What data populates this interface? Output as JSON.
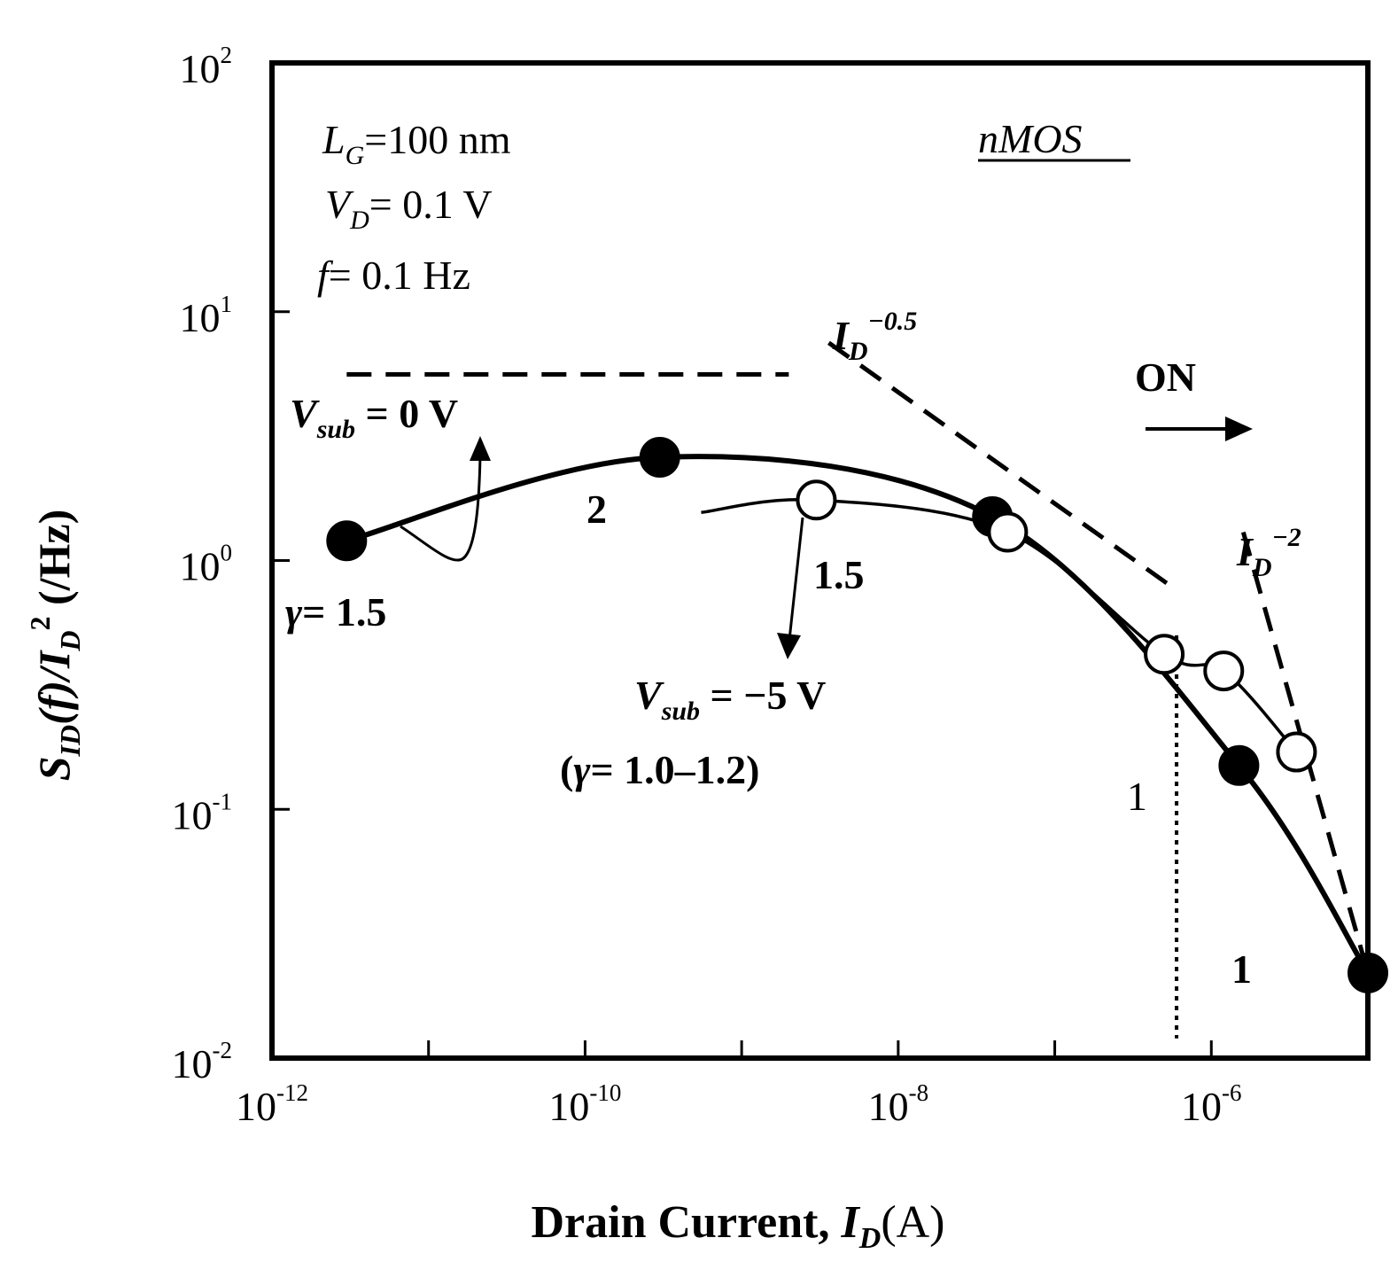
{
  "chart_data": {
    "type": "line",
    "x_scale": "log",
    "y_scale": "log",
    "xlim": [
      1e-12,
      1e-05
    ],
    "ylim": [
      0.01,
      100
    ],
    "grid": false,
    "x_ticks": [
      {
        "value": 1e-12,
        "base": "10",
        "exp": "-12"
      },
      {
        "value": 1e-10,
        "base": "10",
        "exp": "-10"
      },
      {
        "value": 1e-08,
        "base": "10",
        "exp": "-8"
      },
      {
        "value": 1e-06,
        "base": "10",
        "exp": "-6"
      }
    ],
    "y_ticks": [
      {
        "value": 0.01,
        "base": "10",
        "exp": "-2"
      },
      {
        "value": 0.1,
        "base": "10",
        "exp": "-1"
      },
      {
        "value": 1,
        "base": "10",
        "exp": "0"
      },
      {
        "value": 10,
        "base": "10",
        "exp": "1"
      },
      {
        "value": 100,
        "base": "10",
        "exp": "2"
      }
    ],
    "xlabel": {
      "text": "Drain Current, ",
      "var": "I",
      "var_sub": "D",
      "unit": "(A)"
    },
    "ylabel": {
      "s": "S",
      "s_sub": "ID",
      "mid": "(f)/",
      "i": "I",
      "i_sub": "D",
      "i_sup": "2",
      "unit": " (/Hz)"
    },
    "series": [
      {
        "marker": "filled-circle",
        "x": [
          3e-12,
          3e-10,
          4e-08,
          1.5e-06,
          1e-05
        ],
        "y": [
          1.2,
          2.6,
          1.5,
          0.15,
          0.022
        ]
      },
      {
        "marker": "open-circle",
        "x": [
          3e-09,
          5e-08,
          5e-07,
          1.2e-06,
          3.5e-06
        ],
        "y": [
          1.75,
          1.3,
          0.42,
          0.36,
          0.17
        ]
      }
    ],
    "reference_lines": [
      {
        "style": "dashed",
        "x": [
          3e-12,
          2e-09
        ],
        "y": [
          5.6,
          5.6
        ]
      },
      {
        "style": "dashed",
        "x": [
          3.6e-09,
          6e-07
        ],
        "y": [
          7.5,
          0.76
        ]
      },
      {
        "style": "dashed",
        "x": [
          1.6e-06,
          1e-05
        ],
        "y": [
          1.3,
          0.022
        ]
      },
      {
        "style": "dotted",
        "x": [
          6e-07,
          6e-07
        ],
        "y": [
          0.5,
          0.012
        ]
      }
    ],
    "annotations": {
      "params": [
        {
          "var": "L",
          "sub": "G",
          "rest": "=100 nm"
        },
        {
          "var": "V",
          "sub": "D",
          "rest": "= 0.1 V"
        },
        {
          "var": "f",
          "sub": "",
          "rest": "= 0.1 Hz"
        }
      ],
      "device": "nMOS",
      "slope_half": {
        "var": "I",
        "sub": "D",
        "sup": "−0.5"
      },
      "slope_two": {
        "var": "I",
        "sub": "D",
        "sup": "−2"
      },
      "on_label": "ON",
      "vsub0": {
        "var": "V",
        "sub": "sub",
        "rest": " = 0 V"
      },
      "vsub5": {
        "var": "V",
        "sub": "sub",
        "rest": " = −5 V"
      },
      "gamma_left": {
        "sym": "γ",
        "rest": "= 1.5"
      },
      "gamma_range": {
        "open": "(",
        "sym": "γ",
        "rest": "= 1.0–1.2)"
      },
      "num_2": "2",
      "num_15": "1.5",
      "num_1_dotted": "1",
      "num_1_right": "1"
    }
  }
}
